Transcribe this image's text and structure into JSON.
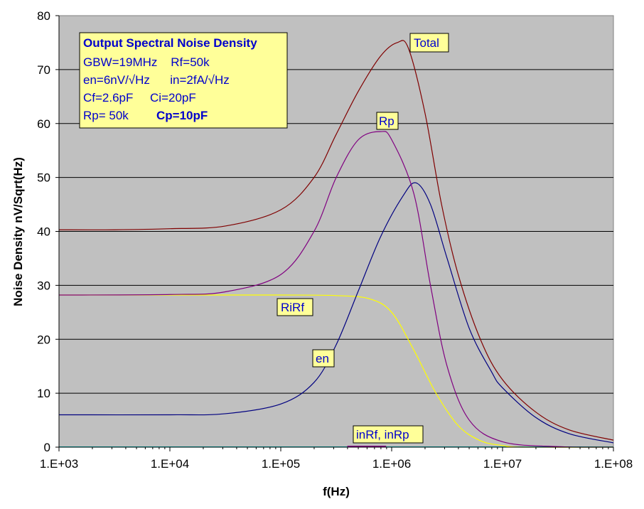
{
  "chart_data": {
    "type": "line",
    "xscale": "log",
    "xlabel": "f(Hz)",
    "ylabel": "Noise Density  nV/Sqrt(Hz)",
    "xlim": [
      1000,
      100000000
    ],
    "ylim": [
      0,
      80
    ],
    "xticks": [
      "1.E+03",
      "1.E+04",
      "1.E+05",
      "1.E+06",
      "1.E+07",
      "1.E+08"
    ],
    "yticks": [
      "0",
      "10",
      "20",
      "30",
      "40",
      "50",
      "60",
      "70",
      "80"
    ],
    "grid": "horizontal",
    "annotation": {
      "title": "Output Spectral Noise Density",
      "lines": [
        "GBW=19MHz    Rf=50k",
        "en=6nV/√Hz      in=2fA/√Hz",
        "Cf=2.6pF     Ci=20pF"
      ],
      "last_line_a": "Rp= 50k",
      "last_line_b": "Cp=10pF"
    },
    "series": [
      {
        "name": "Total",
        "color": "#800000",
        "log10f": [
          3,
          3.5,
          4,
          4.5,
          5,
          5.3,
          5.5,
          5.7,
          5.9,
          6.05,
          6.15,
          6.3,
          6.45,
          6.6,
          6.8,
          7,
          7.3,
          7.6,
          8
        ],
        "values": [
          40.3,
          40.3,
          40.5,
          41,
          44,
          50,
          58,
          66,
          72.5,
          75,
          74,
          62,
          45,
          32,
          20,
          12.5,
          6.5,
          3.2,
          1.3
        ]
      },
      {
        "name": "Rp",
        "color": "#800080",
        "log10f": [
          3,
          4,
          4.5,
          5,
          5.3,
          5.5,
          5.7,
          5.9,
          6,
          6.2,
          6.35,
          6.5,
          6.7,
          7,
          7.5,
          8
        ],
        "values": [
          28.2,
          28.3,
          28.8,
          32,
          40,
          50,
          57,
          58.5,
          57,
          47,
          30,
          15,
          5,
          1,
          0.1,
          0
        ]
      },
      {
        "name": "en",
        "color": "#000080",
        "log10f": [
          3,
          4,
          4.5,
          5,
          5.3,
          5.5,
          5.7,
          5.9,
          6.1,
          6.22,
          6.35,
          6.5,
          6.7,
          6.9,
          7,
          7.3,
          7.6,
          8
        ],
        "values": [
          6,
          6,
          6.2,
          8,
          12,
          19,
          29,
          39,
          46.5,
          49,
          45,
          35,
          22,
          14,
          11,
          5.5,
          2.5,
          0.8
        ]
      },
      {
        "name": "RiRf",
        "color": "#ffff00",
        "log10f": [
          3,
          4,
          5,
          5.5,
          5.8,
          6,
          6.2,
          6.4,
          6.6,
          6.8,
          7,
          7.2,
          8
        ],
        "values": [
          28.2,
          28.2,
          28.2,
          28.1,
          27.5,
          25,
          18,
          10,
          4,
          1.2,
          0.3,
          0,
          0
        ]
      },
      {
        "name": "inRf, inRp",
        "color": "#00c0c0",
        "log10f": [
          3,
          8
        ],
        "values": [
          0.05,
          0.05
        ]
      }
    ]
  }
}
